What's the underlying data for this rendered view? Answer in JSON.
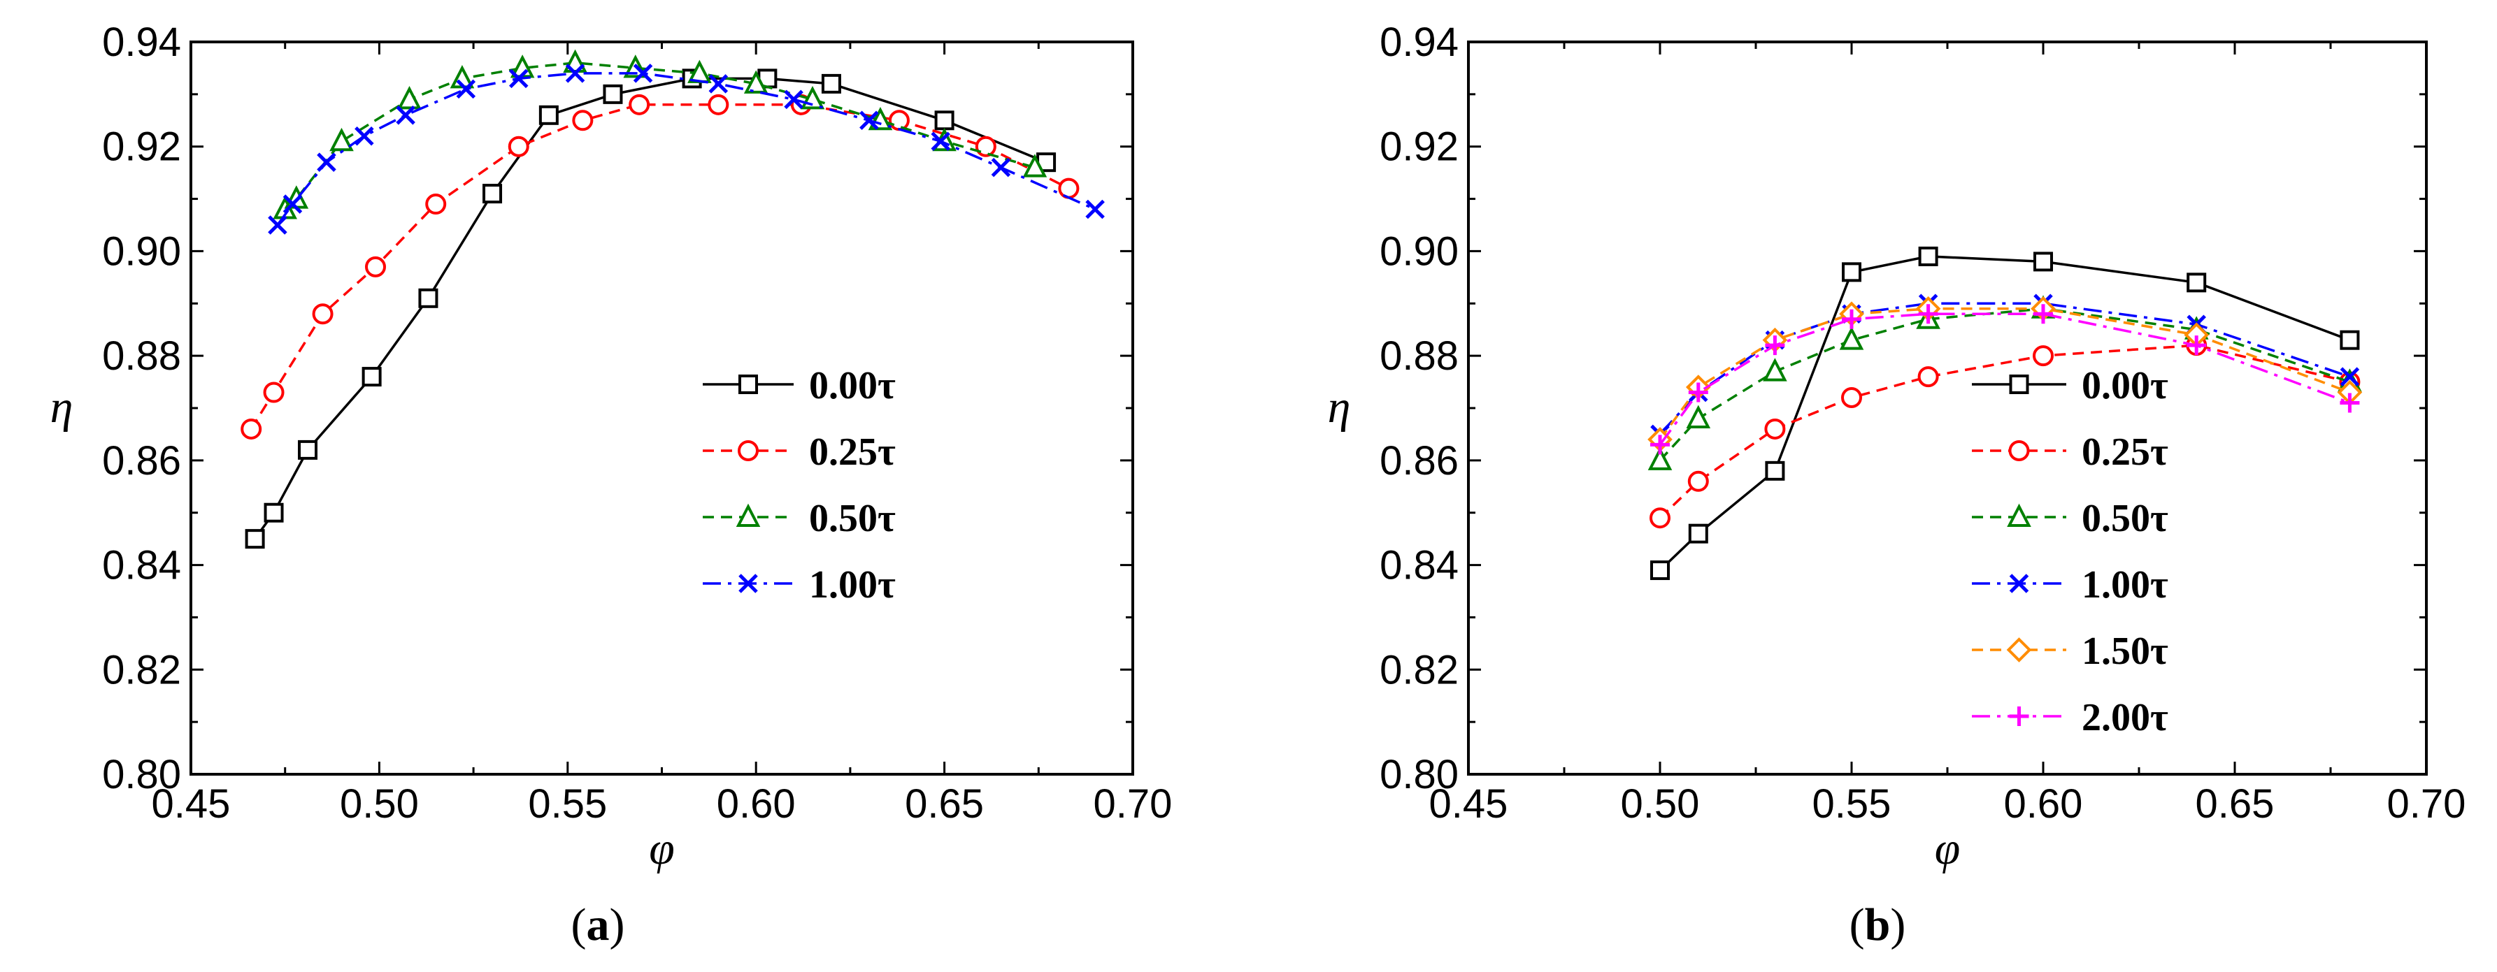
{
  "chart_data": [
    {
      "type": "line",
      "panel_label": "a",
      "xlabel": "φ",
      "ylabel": "η",
      "xlim": [
        0.45,
        0.7
      ],
      "ylim": [
        0.8,
        0.94
      ],
      "x_ticks": [
        "0.45",
        "0.50",
        "0.55",
        "0.60",
        "0.65",
        "0.70"
      ],
      "y_ticks": [
        "0.80",
        "0.82",
        "0.84",
        "0.86",
        "0.88",
        "0.90",
        "0.92",
        "0.94"
      ],
      "legend_position": "right",
      "series": [
        {
          "name": "0.00τ",
          "color": "#000000",
          "dash": "solid",
          "marker": "square",
          "x": [
            0.467,
            0.472,
            0.481,
            0.498,
            0.513,
            0.53,
            0.545,
            0.562,
            0.583,
            0.603,
            0.62,
            0.65,
            0.677
          ],
          "y": [
            0.845,
            0.85,
            0.862,
            0.876,
            0.891,
            0.911,
            0.926,
            0.93,
            0.933,
            0.933,
            0.932,
            0.925,
            0.917
          ]
        },
        {
          "name": "0.25τ",
          "color": "#ff0000",
          "dash": "dashed",
          "marker": "circle",
          "x": [
            0.466,
            0.472,
            0.485,
            0.499,
            0.515,
            0.537,
            0.554,
            0.569,
            0.59,
            0.612,
            0.638,
            0.661,
            0.683
          ],
          "y": [
            0.866,
            0.873,
            0.888,
            0.897,
            0.909,
            0.92,
            0.925,
            0.928,
            0.928,
            0.928,
            0.925,
            0.92,
            0.912
          ]
        },
        {
          "name": "0.50τ",
          "color": "#008000",
          "dash": "dashed",
          "marker": "triangle",
          "x": [
            0.475,
            0.478,
            0.49,
            0.508,
            0.522,
            0.538,
            0.552,
            0.568,
            0.585,
            0.6,
            0.615,
            0.633,
            0.65,
            0.674
          ],
          "y": [
            0.908,
            0.91,
            0.921,
            0.929,
            0.933,
            0.935,
            0.936,
            0.935,
            0.934,
            0.932,
            0.929,
            0.925,
            0.921,
            0.916
          ]
        },
        {
          "name": "1.00τ",
          "color": "#0000ff",
          "dash": "dashdot",
          "marker": "x",
          "x": [
            0.473,
            0.477,
            0.486,
            0.496,
            0.507,
            0.523,
            0.537,
            0.552,
            0.57,
            0.59,
            0.61,
            0.63,
            0.649,
            0.665,
            0.69
          ],
          "y": [
            0.905,
            0.909,
            0.917,
            0.922,
            0.926,
            0.931,
            0.933,
            0.934,
            0.934,
            0.932,
            0.929,
            0.925,
            0.921,
            0.916,
            0.908
          ]
        }
      ]
    },
    {
      "type": "line",
      "panel_label": "b",
      "xlabel": "φ",
      "ylabel": "η",
      "xlim": [
        0.45,
        0.7
      ],
      "ylim": [
        0.8,
        0.94
      ],
      "x_ticks": [
        "0.45",
        "0.50",
        "0.55",
        "0.60",
        "0.65",
        "0.70"
      ],
      "y_ticks": [
        "0.80",
        "0.82",
        "0.84",
        "0.86",
        "0.88",
        "0.90",
        "0.92",
        "0.94"
      ],
      "legend_position": "right",
      "series": [
        {
          "name": "0.00τ",
          "color": "#000000",
          "dash": "solid",
          "marker": "square",
          "x": [
            0.5,
            0.51,
            0.53,
            0.55,
            0.57,
            0.6,
            0.64,
            0.68
          ],
          "y": [
            0.839,
            0.846,
            0.858,
            0.896,
            0.899,
            0.898,
            0.894,
            0.883
          ]
        },
        {
          "name": "0.25τ",
          "color": "#ff0000",
          "dash": "dashed",
          "marker": "circle",
          "x": [
            0.5,
            0.51,
            0.53,
            0.55,
            0.57,
            0.6,
            0.64,
            0.68
          ],
          "y": [
            0.849,
            0.856,
            0.866,
            0.872,
            0.876,
            0.88,
            0.882,
            0.875
          ]
        },
        {
          "name": "0.50τ",
          "color": "#008000",
          "dash": "dashed",
          "marker": "triangle",
          "x": [
            0.5,
            0.51,
            0.53,
            0.55,
            0.57,
            0.6,
            0.64,
            0.68
          ],
          "y": [
            0.86,
            0.868,
            0.877,
            0.883,
            0.887,
            0.889,
            0.885,
            0.875
          ]
        },
        {
          "name": "1.00τ",
          "color": "#0000ff",
          "dash": "dashdot",
          "marker": "x",
          "x": [
            0.5,
            0.51,
            0.53,
            0.55,
            0.57,
            0.6,
            0.64,
            0.68
          ],
          "y": [
            0.865,
            0.873,
            0.883,
            0.888,
            0.89,
            0.89,
            0.886,
            0.876
          ]
        },
        {
          "name": "1.50τ",
          "color": "#ff8c00",
          "dash": "dashed",
          "marker": "diamond",
          "x": [
            0.5,
            0.51,
            0.53,
            0.55,
            0.57,
            0.6,
            0.64,
            0.68
          ],
          "y": [
            0.864,
            0.874,
            0.883,
            0.888,
            0.889,
            0.889,
            0.884,
            0.873
          ]
        },
        {
          "name": "2.00τ",
          "color": "#ff00ff",
          "dash": "dashdot",
          "marker": "plus",
          "x": [
            0.5,
            0.51,
            0.53,
            0.55,
            0.57,
            0.6,
            0.64,
            0.68
          ],
          "y": [
            0.863,
            0.873,
            0.882,
            0.887,
            0.888,
            0.888,
            0.882,
            0.871
          ]
        }
      ]
    }
  ],
  "captions": [
    {
      "open": "(",
      "label": "a",
      "close": ")"
    },
    {
      "open": "(",
      "label": "b",
      "close": ")"
    }
  ]
}
